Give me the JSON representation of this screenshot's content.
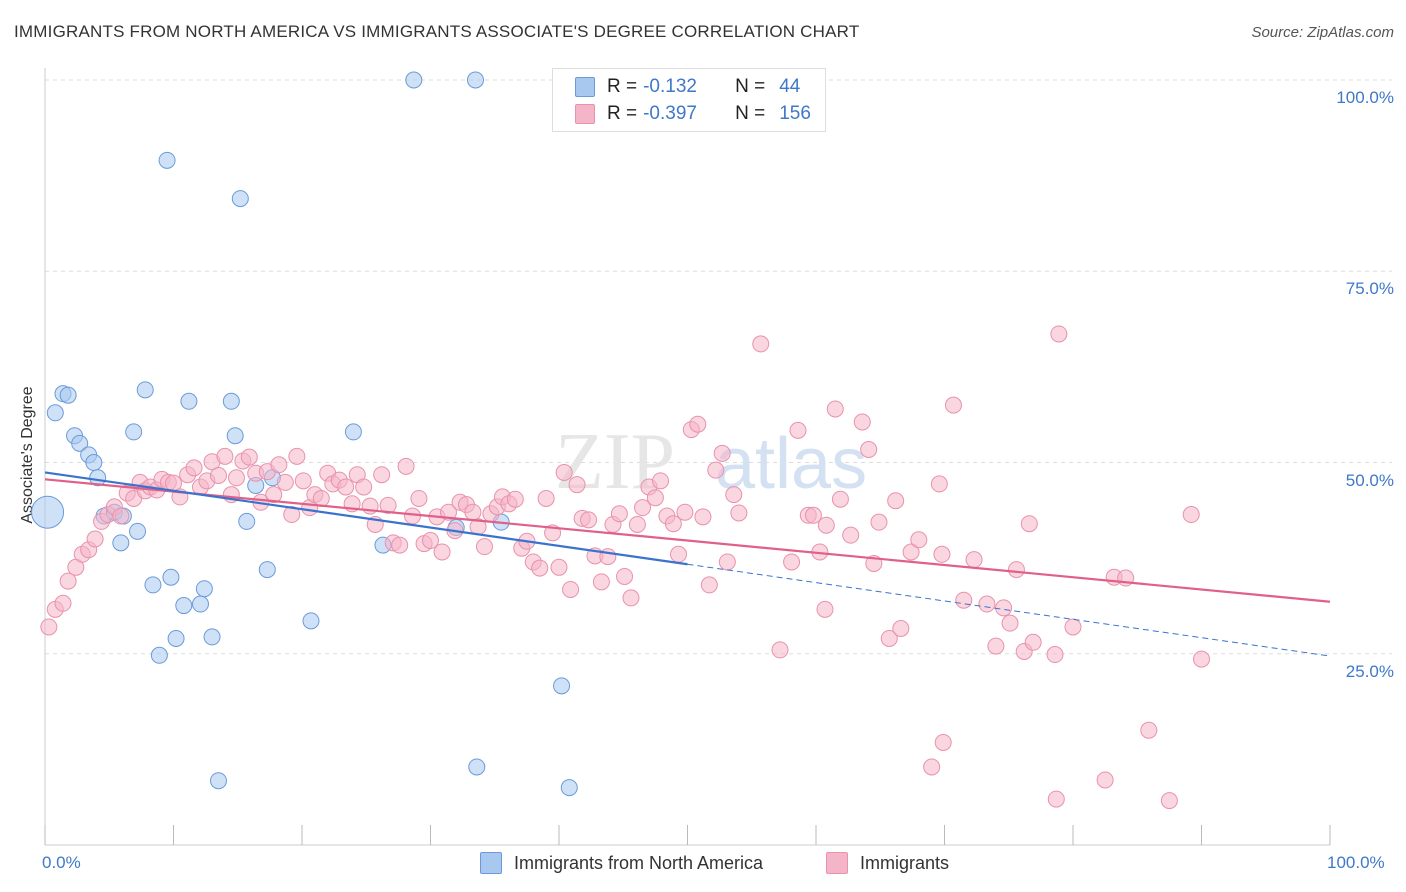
{
  "header": {
    "title": "IMMIGRANTS FROM NORTH AMERICA VS IMMIGRANTS ASSOCIATE'S DEGREE CORRELATION CHART",
    "source": "Source: ZipAtlas.com"
  },
  "legend": {
    "rows": [
      {
        "r_label": "R =",
        "r_value": "-0.132",
        "n_label": "N =",
        "n_value": "44",
        "color": "#a8c8f0"
      },
      {
        "r_label": "R =",
        "r_value": "-0.397",
        "n_label": "N =",
        "n_value": "156",
        "color": "#f5b5c8"
      }
    ]
  },
  "watermark": {
    "zip": "ZIP",
    "atlas": "atlas"
  },
  "chart_data": {
    "type": "scatter",
    "title": "IMMIGRANTS FROM NORTH AMERICA VS IMMIGRANTS ASSOCIATE'S DEGREE CORRELATION CHART",
    "xlabel": "",
    "ylabel": "Associate's Degree",
    "xlim": [
      0,
      100
    ],
    "ylim": [
      0,
      100
    ],
    "x_tick_labels": [
      "0.0%",
      "100.0%"
    ],
    "y_tick_labels": [
      "100.0%",
      "75.0%",
      "50.0%",
      "25.0%"
    ],
    "y_ticks": [
      100,
      75,
      50,
      25
    ],
    "grid": true,
    "legend_placement": "bottom",
    "series": [
      {
        "name": "Immigrants from North America",
        "color": "#a8c8f0",
        "stroke": "#6a9bd8",
        "points": [
          [
            0.2,
            43.5
          ],
          [
            0.8,
            56.5
          ],
          [
            1.4,
            59
          ],
          [
            1.8,
            58.8
          ],
          [
            2.3,
            53.5
          ],
          [
            2.7,
            52.5
          ],
          [
            3.4,
            51
          ],
          [
            3.8,
            50
          ],
          [
            4.1,
            48
          ],
          [
            4.6,
            43
          ],
          [
            5.4,
            43.5
          ],
          [
            5.9,
            39.5
          ],
          [
            6.1,
            43
          ],
          [
            7.2,
            41
          ],
          [
            6.9,
            54
          ],
          [
            7.8,
            59.5
          ],
          [
            8.4,
            34
          ],
          [
            8.9,
            24.8
          ],
          [
            9.5,
            89.5
          ],
          [
            9.8,
            35
          ],
          [
            10.2,
            27
          ],
          [
            10.8,
            31.3
          ],
          [
            11.2,
            58
          ],
          [
            12.1,
            31.5
          ],
          [
            12.4,
            33.5
          ],
          [
            13,
            27.2
          ],
          [
            14.5,
            58
          ],
          [
            14.8,
            53.5
          ],
          [
            15.2,
            84.5
          ],
          [
            15.7,
            42.3
          ],
          [
            16.4,
            47
          ],
          [
            17.3,
            36
          ],
          [
            17.7,
            48
          ],
          [
            20.7,
            29.3
          ],
          [
            24,
            54
          ],
          [
            26.3,
            39.2
          ],
          [
            28.7,
            100
          ],
          [
            33.5,
            100
          ],
          [
            32,
            41.5
          ],
          [
            33.6,
            10.2
          ],
          [
            40.2,
            20.8
          ],
          [
            35.5,
            42.2
          ],
          [
            13.5,
            8.4
          ],
          [
            40.8,
            7.5
          ]
        ],
        "trend": {
          "x": [
            0,
            50
          ],
          "y": [
            48.7,
            36.7
          ]
        },
        "trend_dashed": {
          "x": [
            50,
            100
          ],
          "y": [
            36.7,
            24.7
          ]
        }
      },
      {
        "name": "Immigrants",
        "color": "#f5b5c8",
        "stroke": "#e892ac",
        "points": [
          [
            0.3,
            28.5
          ],
          [
            0.8,
            30.8
          ],
          [
            1.4,
            31.6
          ],
          [
            1.8,
            34.5
          ],
          [
            2.4,
            36.3
          ],
          [
            2.9,
            38
          ],
          [
            3.4,
            38.6
          ],
          [
            3.9,
            40
          ],
          [
            4.4,
            42.3
          ],
          [
            4.9,
            43.2
          ],
          [
            5.4,
            44.2
          ],
          [
            5.9,
            43
          ],
          [
            6.4,
            46
          ],
          [
            6.9,
            45.3
          ],
          [
            7.4,
            47.4
          ],
          [
            7.8,
            46.3
          ],
          [
            8.2,
            46.8
          ],
          [
            8.7,
            46.4
          ],
          [
            9.1,
            47.8
          ],
          [
            9.6,
            47.4
          ],
          [
            10,
            47.3
          ],
          [
            10.5,
            45.5
          ],
          [
            11.1,
            48.4
          ],
          [
            11.6,
            49.3
          ],
          [
            12.1,
            46.8
          ],
          [
            12.6,
            47.6
          ],
          [
            13,
            50.1
          ],
          [
            13.5,
            48.3
          ],
          [
            14,
            50.8
          ],
          [
            14.5,
            45.8
          ],
          [
            14.9,
            48
          ],
          [
            15.4,
            50.2
          ],
          [
            15.9,
            50.7
          ],
          [
            16.4,
            48.6
          ],
          [
            16.8,
            44.8
          ],
          [
            17.3,
            48.8
          ],
          [
            17.8,
            45.8
          ],
          [
            18.2,
            49.7
          ],
          [
            18.7,
            47.4
          ],
          [
            19.2,
            43.2
          ],
          [
            19.6,
            50.8
          ],
          [
            20.1,
            47.6
          ],
          [
            20.6,
            44.1
          ],
          [
            21,
            45.8
          ],
          [
            21.5,
            45.3
          ],
          [
            22,
            48.6
          ],
          [
            22.4,
            47.2
          ],
          [
            22.9,
            47.7
          ],
          [
            23.4,
            46.8
          ],
          [
            23.9,
            44.6
          ],
          [
            24.3,
            48.4
          ],
          [
            24.8,
            46.8
          ],
          [
            25.3,
            44.3
          ],
          [
            25.7,
            41.9
          ],
          [
            26.2,
            48.4
          ],
          [
            26.7,
            44.4
          ],
          [
            27.1,
            39.5
          ],
          [
            27.6,
            39.2
          ],
          [
            28.1,
            49.5
          ],
          [
            28.6,
            43
          ],
          [
            29.1,
            45.3
          ],
          [
            29.5,
            39.4
          ],
          [
            30,
            39.8
          ],
          [
            30.5,
            42.9
          ],
          [
            30.9,
            38.3
          ],
          [
            31.4,
            43.5
          ],
          [
            31.9,
            41.1
          ],
          [
            32.3,
            44.8
          ],
          [
            32.8,
            44.5
          ],
          [
            33.3,
            43.5
          ],
          [
            33.7,
            41.6
          ],
          [
            34.2,
            39
          ],
          [
            34.7,
            43.3
          ],
          [
            35.2,
            44.2
          ],
          [
            35.6,
            45.5
          ],
          [
            36.1,
            44.6
          ],
          [
            36.6,
            45.2
          ],
          [
            37.1,
            38.8
          ],
          [
            37.5,
            39.7
          ],
          [
            38,
            37
          ],
          [
            38.5,
            36.2
          ],
          [
            39,
            45.3
          ],
          [
            39.5,
            40.8
          ],
          [
            40,
            36.3
          ],
          [
            40.4,
            48.7
          ],
          [
            40.9,
            33.4
          ],
          [
            41.4,
            47.1
          ],
          [
            41.8,
            42.7
          ],
          [
            42.3,
            42.5
          ],
          [
            42.8,
            37.8
          ],
          [
            43.3,
            34.4
          ],
          [
            43.8,
            37.7
          ],
          [
            44.2,
            41.9
          ],
          [
            44.7,
            43.3
          ],
          [
            45.1,
            35.1
          ],
          [
            45.6,
            32.3
          ],
          [
            46.1,
            41.9
          ],
          [
            46.5,
            44.1
          ],
          [
            47,
            46.8
          ],
          [
            47.5,
            45.4
          ],
          [
            47.9,
            47.6
          ],
          [
            48.4,
            43
          ],
          [
            48.9,
            42
          ],
          [
            49.3,
            38
          ],
          [
            49.8,
            43.5
          ],
          [
            50.3,
            54.3
          ],
          [
            50.8,
            55
          ],
          [
            51.2,
            42.9
          ],
          [
            51.7,
            34
          ],
          [
            52.2,
            49
          ],
          [
            52.7,
            51.2
          ],
          [
            53.1,
            37
          ],
          [
            53.6,
            45.8
          ],
          [
            54,
            43.4
          ],
          [
            55.7,
            65.5
          ],
          [
            57.2,
            25.5
          ],
          [
            58.1,
            37
          ],
          [
            58.6,
            54.2
          ],
          [
            59.4,
            43.1
          ],
          [
            59.8,
            43.1
          ],
          [
            60.3,
            38.3
          ],
          [
            60.8,
            41.8
          ],
          [
            60.7,
            30.8
          ],
          [
            61.5,
            57
          ],
          [
            61.9,
            45.2
          ],
          [
            62.7,
            40.5
          ],
          [
            63.6,
            55.3
          ],
          [
            64.1,
            51.7
          ],
          [
            64.5,
            36.8
          ],
          [
            64.9,
            42.2
          ],
          [
            65.7,
            27
          ],
          [
            66.2,
            45
          ],
          [
            66.6,
            28.3
          ],
          [
            67.4,
            38.3
          ],
          [
            68,
            39.9
          ],
          [
            69,
            10.2
          ],
          [
            69.6,
            47.2
          ],
          [
            69.9,
            13.4
          ],
          [
            69.8,
            38
          ],
          [
            70.7,
            57.5
          ],
          [
            71.5,
            32
          ],
          [
            72.3,
            37.3
          ],
          [
            73.3,
            31.5
          ],
          [
            74,
            26
          ],
          [
            74.6,
            31
          ],
          [
            75.1,
            29
          ],
          [
            75.6,
            36
          ],
          [
            76.2,
            25.3
          ],
          [
            76.9,
            26.5
          ],
          [
            76.6,
            42
          ],
          [
            78.7,
            6
          ],
          [
            78.6,
            24.9
          ],
          [
            78.9,
            66.8
          ],
          [
            80,
            28.5
          ],
          [
            82.5,
            8.5
          ],
          [
            83.2,
            35
          ],
          [
            84.1,
            34.9
          ],
          [
            85.9,
            15
          ],
          [
            87.5,
            5.8
          ],
          [
            89.2,
            43.2
          ],
          [
            90,
            24.3
          ]
        ],
        "trend": {
          "x": [
            0,
            100
          ],
          "y": [
            47.8,
            31.8
          ]
        }
      }
    ]
  },
  "bottom_legend": [
    {
      "label": "Immigrants from North America",
      "color": "#a8c8f0"
    },
    {
      "label": "Immigrants",
      "color": "#f5b5c8"
    }
  ]
}
